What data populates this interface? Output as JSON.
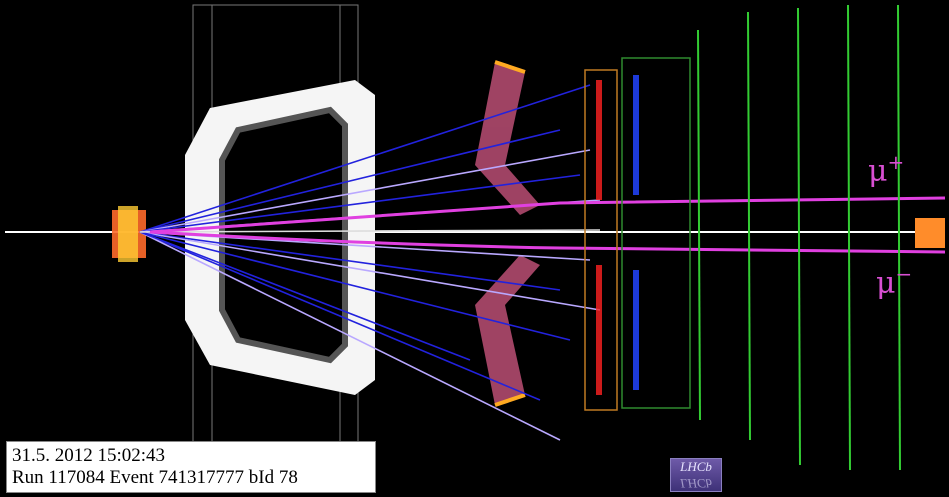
{
  "event_info": {
    "datetime": "31.5. 2012  15:02:43",
    "run_line": "Run 117084 Event 741317777    bId 78"
  },
  "labels": {
    "mu_plus": {
      "symbol": "μ",
      "sign": "+"
    },
    "mu_minus": {
      "symbol": "μ",
      "sign": "−"
    }
  },
  "logo": {
    "text": "LHCb"
  },
  "colors": {
    "background": "#000000",
    "muon_track": "#e040e0",
    "track_blue": "#2222dd",
    "track_lilac": "#b9a8ff",
    "hits_green": "#33dd33",
    "magnet": "#ffffff",
    "rich_mirror": "#b04a6e",
    "calo_red": "#ff2222",
    "calo_blue": "#2244ff"
  }
}
